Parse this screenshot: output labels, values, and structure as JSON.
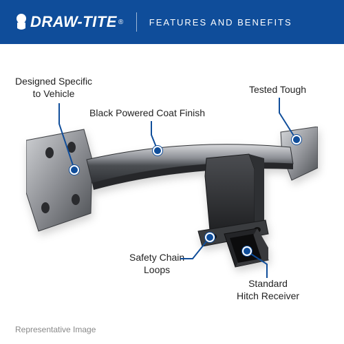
{
  "header": {
    "bg_color": "#0f4d9a",
    "logo_text": "DRAW-TITE",
    "registered": "®",
    "tagline": "FEATURES AND BENEFITS"
  },
  "callouts": {
    "designed": {
      "text": "Designed Specific\nto Vehicle",
      "marker_color": "#0f4d9a",
      "line_color": "#0f4d9a"
    },
    "tested": {
      "text": "Tested Tough",
      "marker_color": "#0f4d9a",
      "line_color": "#0f4d9a"
    },
    "finish": {
      "text": "Black Powered Coat Finish",
      "marker_color": "#0f4d9a",
      "line_color": "#0f4d9a"
    },
    "safety": {
      "text": "Safety Chain\nLoops",
      "marker_color": "#0f4d9a",
      "line_color": "#0f4d9a"
    },
    "receiver": {
      "text": "Standard\nHitch Receiver",
      "marker_color": "#0f4d9a",
      "line_color": "#0f4d9a"
    }
  },
  "product": {
    "bar_light": "#c9cbcf",
    "bar_mid": "#8e9197",
    "bar_dark": "#3f4246",
    "bracket_light": "#b6b8bc",
    "bracket_dark": "#55585d",
    "receiver_dark": "#1f2022",
    "receiver_mid": "#3a3b3e"
  },
  "footer": {
    "note": "Representative Image"
  },
  "style": {
    "label_fontsize": "14px"
  }
}
